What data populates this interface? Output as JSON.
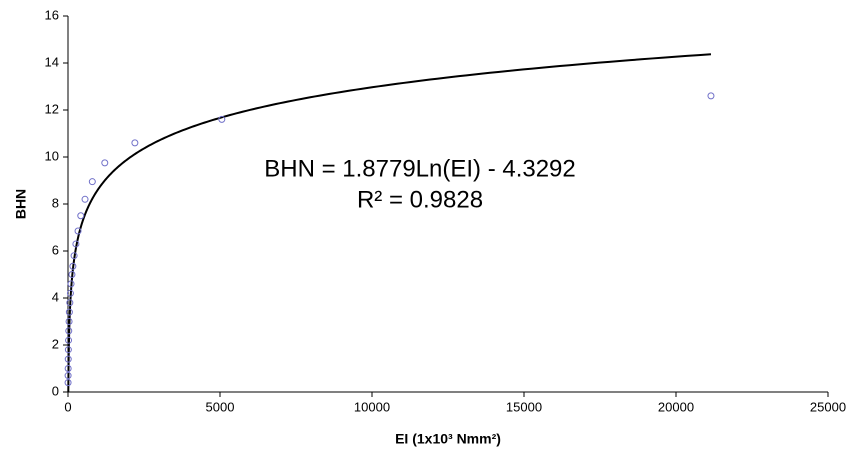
{
  "chart_data": {
    "type": "scatter",
    "x": [
      21150,
      5060,
      2200,
      1210,
      800,
      560,
      420,
      330,
      260,
      200,
      160,
      130,
      100,
      80,
      60,
      45,
      35,
      25,
      18,
      12,
      8,
      5,
      3,
      2
    ],
    "values": [
      12.6,
      11.6,
      10.6,
      9.75,
      8.95,
      8.2,
      7.5,
      6.85,
      6.3,
      5.8,
      5.35,
      5.0,
      4.6,
      4.2,
      3.8,
      3.4,
      3.0,
      2.6,
      2.2,
      1.8,
      1.4,
      1.0,
      0.7,
      0.4
    ],
    "color": "#7070c8",
    "trendline": {
      "type": "log",
      "coefficient": 1.8779,
      "intercept": -4.3292,
      "color": "#000000"
    },
    "annotations": [
      "BHN = 1.8779Ln(EI) - 4.3292",
      "R² = 0.9828"
    ],
    "x_label": "EI (1x10³ Nmm²)",
    "y_label": "BHN",
    "xlim": [
      0,
      25000
    ],
    "xticks": [
      0,
      5000,
      10000,
      15000,
      20000,
      25000
    ],
    "ylim": [
      0,
      16
    ],
    "yticks": [
      0,
      2,
      4,
      6,
      8,
      10,
      12,
      14,
      16
    ],
    "grid": false
  }
}
